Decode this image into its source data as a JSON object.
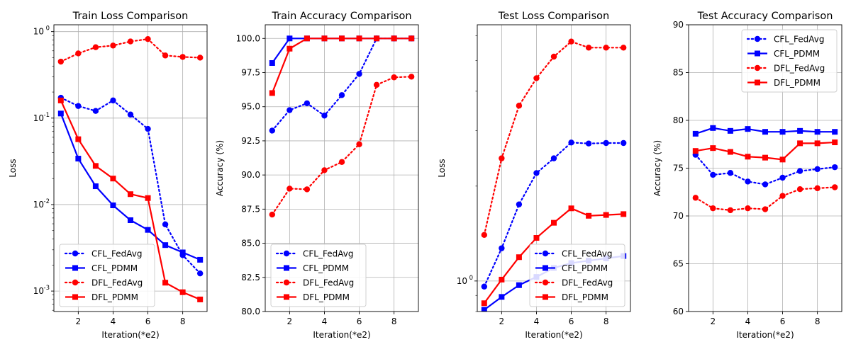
{
  "figure": {
    "name": "federated-learning-comparison"
  },
  "chart_data": [
    {
      "type": "line",
      "title": "Train Loss Comparison",
      "xlabel": "Iteration(*e2)",
      "ylabel": "Loss",
      "yscale": "log",
      "xlim": [
        0.6,
        9.4
      ],
      "ylim": [
        0.00058,
        1.2
      ],
      "xticks": [
        2,
        4,
        6,
        8
      ],
      "xtick_labels": [
        "2",
        "4",
        "6",
        "8"
      ],
      "yticks": [
        0.001,
        0.01,
        0.1,
        1
      ],
      "ytick_labels": [
        "10",
        "10",
        "10",
        "10"
      ],
      "ytick_exponents": [
        "-3",
        "-2",
        "-1",
        "0"
      ],
      "grid": true,
      "legend_position": "lower-left",
      "x": [
        1,
        2,
        3,
        4,
        5,
        6,
        7,
        8,
        9
      ],
      "series": [
        {
          "name": "CFL_FedAvg",
          "color": "#0000ff",
          "style": "dotted",
          "marker": "circle",
          "values": [
            0.172,
            0.138,
            0.121,
            0.16,
            0.11,
            0.075,
            0.0059,
            0.0026,
            0.0016
          ]
        },
        {
          "name": "CFL_PDMM",
          "color": "#0000ff",
          "style": "solid",
          "marker": "square",
          "values": [
            0.113,
            0.034,
            0.0163,
            0.0098,
            0.0066,
            0.0051,
            0.0034,
            0.0028,
            0.0023
          ]
        },
        {
          "name": "DFL_FedAvg",
          "color": "#ff0000",
          "style": "dotted",
          "marker": "circle",
          "values": [
            0.45,
            0.56,
            0.66,
            0.69,
            0.77,
            0.82,
            0.53,
            0.51,
            0.5
          ]
        },
        {
          "name": "DFL_PDMM",
          "color": "#ff0000",
          "style": "solid",
          "marker": "square",
          "values": [
            0.16,
            0.057,
            0.028,
            0.02,
            0.0132,
            0.0119,
            0.00125,
            0.00097,
            0.0008
          ]
        }
      ]
    },
    {
      "type": "line",
      "title": "Train Accuracy Comparison",
      "xlabel": "Iteration(*e2)",
      "ylabel": "Accuracy (%)",
      "yscale": "linear",
      "xlim": [
        0.6,
        9.4
      ],
      "ylim": [
        80,
        101
      ],
      "xticks": [
        2,
        4,
        6,
        8
      ],
      "xtick_labels": [
        "2",
        "4",
        "6",
        "8"
      ],
      "yticks": [
        80,
        82.5,
        85,
        87.5,
        90,
        92.5,
        95,
        97.5,
        100
      ],
      "ytick_labels": [
        "80.0",
        "82.5",
        "85.0",
        "87.5",
        "90.0",
        "92.5",
        "95.0",
        "97.5",
        "100.0"
      ],
      "grid": true,
      "legend_position": "lower-left",
      "x": [
        1,
        2,
        3,
        4,
        5,
        6,
        7,
        8,
        9
      ],
      "series": [
        {
          "name": "CFL_FedAvg",
          "color": "#0000ff",
          "style": "dotted",
          "marker": "circle",
          "values": [
            93.25,
            94.75,
            95.25,
            94.35,
            95.85,
            97.4,
            100,
            100,
            100
          ]
        },
        {
          "name": "CFL_PDMM",
          "color": "#0000ff",
          "style": "solid",
          "marker": "square",
          "values": [
            98.2,
            100,
            100,
            100,
            100,
            100,
            100,
            100,
            100
          ]
        },
        {
          "name": "DFL_FedAvg",
          "color": "#ff0000",
          "style": "dotted",
          "marker": "circle",
          "values": [
            87.1,
            89.0,
            88.95,
            90.35,
            90.95,
            92.25,
            96.6,
            97.15,
            97.2
          ]
        },
        {
          "name": "DFL_PDMM",
          "color": "#ff0000",
          "style": "solid",
          "marker": "square",
          "values": [
            96.0,
            99.25,
            100,
            100,
            100,
            100,
            100,
            100,
            100
          ]
        }
      ]
    },
    {
      "type": "line",
      "title": "Test Loss Comparison",
      "xlabel": "Iteration(*e2)",
      "ylabel": "Loss",
      "yscale": "log",
      "xlim": [
        0.6,
        9.4
      ],
      "ylim": [
        0.8,
        6.5
      ],
      "xticks": [
        2,
        4,
        6,
        8
      ],
      "xtick_labels": [
        "2",
        "4",
        "6",
        "8"
      ],
      "yticks": [
        1
      ],
      "ytick_labels": [
        "10"
      ],
      "ytick_exponents": [
        "0"
      ],
      "minor_yticks": [
        2,
        3,
        4,
        5,
        6
      ],
      "grid": true,
      "legend_position": "lower-right",
      "x": [
        1,
        2,
        3,
        4,
        5,
        6,
        7,
        8,
        9
      ],
      "series": [
        {
          "name": "CFL_FedAvg",
          "color": "#0000ff",
          "style": "dotted",
          "marker": "circle",
          "values": [
            0.96,
            1.27,
            1.75,
            2.2,
            2.45,
            2.75,
            2.73,
            2.74,
            2.74
          ]
        },
        {
          "name": "CFL_PDMM",
          "color": "#0000ff",
          "style": "solid",
          "marker": "square",
          "values": [
            0.81,
            0.89,
            0.97,
            1.03,
            1.1,
            1.14,
            1.16,
            1.18,
            1.2
          ]
        },
        {
          "name": "DFL_FedAvg",
          "color": "#ff0000",
          "style": "dotted",
          "marker": "circle",
          "values": [
            1.4,
            2.45,
            3.6,
            4.4,
            5.15,
            5.75,
            5.5,
            5.5,
            5.5
          ]
        },
        {
          "name": "DFL_PDMM",
          "color": "#ff0000",
          "style": "solid",
          "marker": "square",
          "values": [
            0.85,
            1.01,
            1.19,
            1.37,
            1.53,
            1.7,
            1.61,
            1.62,
            1.63
          ]
        }
      ]
    },
    {
      "type": "line",
      "title": "Test Accuracy Comparison",
      "xlabel": "Iteration(*e2)",
      "ylabel": "Accuracy (%)",
      "yscale": "linear",
      "xlim": [
        0.6,
        9.4
      ],
      "ylim": [
        60,
        90
      ],
      "xticks": [
        2,
        4,
        6,
        8
      ],
      "xtick_labels": [
        "2",
        "4",
        "6",
        "8"
      ],
      "yticks": [
        60,
        65,
        70,
        75,
        80,
        85,
        90
      ],
      "ytick_labels": [
        "60",
        "65",
        "70",
        "75",
        "80",
        "85",
        "90"
      ],
      "grid": true,
      "legend_position": "upper-right",
      "x": [
        1,
        2,
        3,
        4,
        5,
        6,
        7,
        8,
        9
      ],
      "series": [
        {
          "name": "CFL_FedAvg",
          "color": "#0000ff",
          "style": "dotted",
          "marker": "circle",
          "values": [
            76.4,
            74.3,
            74.5,
            73.6,
            73.3,
            74.0,
            74.7,
            74.9,
            75.1
          ]
        },
        {
          "name": "CFL_PDMM",
          "color": "#0000ff",
          "style": "solid",
          "marker": "square",
          "values": [
            78.6,
            79.2,
            78.9,
            79.1,
            78.8,
            78.8,
            78.9,
            78.8,
            78.8
          ]
        },
        {
          "name": "DFL_FedAvg",
          "color": "#ff0000",
          "style": "dotted",
          "marker": "circle",
          "values": [
            71.9,
            70.8,
            70.6,
            70.8,
            70.7,
            72.1,
            72.8,
            72.9,
            73.0
          ]
        },
        {
          "name": "DFL_PDMM",
          "color": "#ff0000",
          "style": "solid",
          "marker": "square",
          "values": [
            76.8,
            77.1,
            76.7,
            76.2,
            76.1,
            75.9,
            77.6,
            77.6,
            77.7
          ]
        }
      ]
    }
  ]
}
